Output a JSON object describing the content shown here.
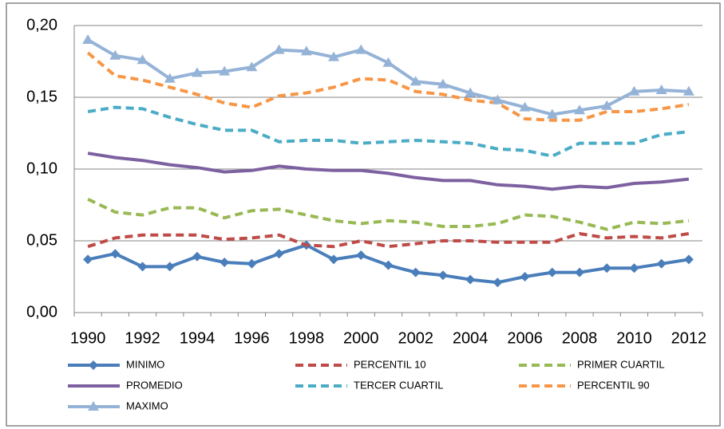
{
  "chart_data": {
    "type": "line",
    "categories": [
      "1990",
      null,
      "1992",
      null,
      "1994",
      null,
      "1996",
      null,
      "1998",
      null,
      "2000",
      null,
      "2002",
      null,
      "2004",
      null,
      "2006",
      null,
      "2008",
      null,
      "2010",
      null,
      "2012"
    ],
    "ylim": [
      0,
      0.2
    ],
    "yticks": [
      {
        "value": 0,
        "label": "0,00"
      },
      {
        "value": 0.05,
        "label": "0,05"
      },
      {
        "value": 0.1,
        "label": "0,10"
      },
      {
        "value": 0.15,
        "label": "0,15"
      },
      {
        "value": 0.2,
        "label": "0,20"
      }
    ],
    "grid": true,
    "legend": "bottom",
    "series": [
      {
        "name": "MINIMO",
        "color": "#4a7ebb",
        "dash": false,
        "marker": "diamond",
        "values": [
          0.037,
          0.041,
          0.032,
          0.032,
          0.039,
          0.035,
          0.034,
          0.041,
          0.047,
          0.037,
          0.04,
          0.033,
          0.028,
          0.026,
          0.023,
          0.021,
          0.025,
          0.028,
          0.028,
          0.031,
          0.031,
          0.034,
          0.037
        ]
      },
      {
        "name": "PERCENTIL 10",
        "color": "#be4b48",
        "dash": true,
        "marker": null,
        "values": [
          0.046,
          0.052,
          0.054,
          0.054,
          0.054,
          0.051,
          0.052,
          0.054,
          0.047,
          0.046,
          0.05,
          0.046,
          0.048,
          0.05,
          0.05,
          0.049,
          0.049,
          0.049,
          0.055,
          0.052,
          0.053,
          0.052,
          0.055
        ]
      },
      {
        "name": "PRIMER CUARTIL",
        "color": "#98b954",
        "dash": true,
        "marker": null,
        "values": [
          0.079,
          0.07,
          0.068,
          0.073,
          0.073,
          0.066,
          0.071,
          0.072,
          0.068,
          0.064,
          0.062,
          0.064,
          0.063,
          0.06,
          0.06,
          0.062,
          0.068,
          0.067,
          0.063,
          0.058,
          0.063,
          0.062,
          0.064
        ]
      },
      {
        "name": "PROMEDIO",
        "color": "#7d60a0",
        "dash": false,
        "marker": null,
        "values": [
          0.111,
          0.108,
          0.106,
          0.103,
          0.101,
          0.098,
          0.099,
          0.102,
          0.1,
          0.099,
          0.099,
          0.097,
          0.094,
          0.092,
          0.092,
          0.089,
          0.088,
          0.086,
          0.088,
          0.087,
          0.09,
          0.091,
          0.093
        ]
      },
      {
        "name": "TERCER CUARTIL",
        "color": "#4bacc6",
        "dash": true,
        "marker": null,
        "values": [
          0.14,
          0.143,
          0.142,
          0.136,
          0.131,
          0.127,
          0.127,
          0.119,
          0.12,
          0.12,
          0.118,
          0.119,
          0.12,
          0.119,
          0.118,
          0.114,
          0.113,
          0.109,
          0.118,
          0.118,
          0.118,
          0.124,
          0.126
        ]
      },
      {
        "name": "PERCENTIL 90",
        "color": "#f79646",
        "dash": true,
        "marker": null,
        "values": [
          0.181,
          0.165,
          0.162,
          0.157,
          0.152,
          0.146,
          0.143,
          0.151,
          0.153,
          0.157,
          0.163,
          0.162,
          0.154,
          0.152,
          0.148,
          0.146,
          0.135,
          0.134,
          0.134,
          0.14,
          0.14,
          0.142,
          0.145
        ]
      },
      {
        "name": "MAXIMO",
        "color": "#95b3d7",
        "dash": false,
        "marker": "triangle",
        "values": [
          0.19,
          0.179,
          0.176,
          0.163,
          0.167,
          0.168,
          0.171,
          0.183,
          0.182,
          0.178,
          0.183,
          0.174,
          0.161,
          0.159,
          0.153,
          0.148,
          0.143,
          0.138,
          0.141,
          0.144,
          0.154,
          0.155,
          0.154
        ]
      }
    ]
  }
}
